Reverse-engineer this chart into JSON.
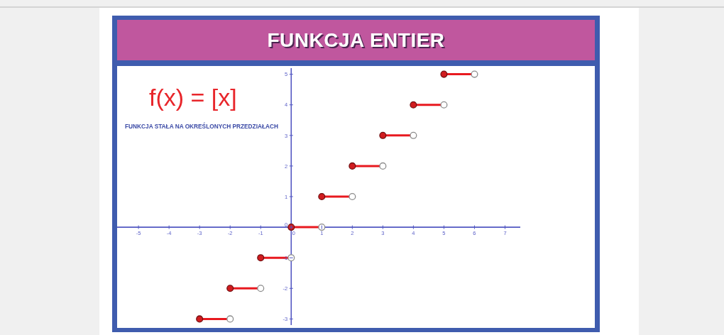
{
  "chart_data": {
    "type": "line",
    "title": "FUNKCJA ENTIER",
    "subtitle": "f(x) = [x]",
    "annotations": [
      "FUNKCJA STAŁA NA OKREŚLONYCH PRZEDZIAŁACH"
    ],
    "series": [
      {
        "x": [
          -3,
          -2
        ],
        "values": [
          -3,
          -3
        ],
        "color": "#e8191f"
      },
      {
        "x": [
          -2,
          -1
        ],
        "values": [
          -2,
          -2
        ],
        "color": "#e8191f"
      },
      {
        "x": [
          -1,
          0
        ],
        "values": [
          -1,
          -1
        ],
        "color": "#e8191f"
      },
      {
        "x": [
          0,
          1
        ],
        "values": [
          0,
          0
        ],
        "color": "#e8191f"
      },
      {
        "x": [
          1,
          2
        ],
        "values": [
          1,
          1
        ],
        "color": "#e8191f"
      },
      {
        "x": [
          2,
          3
        ],
        "values": [
          2,
          2
        ],
        "color": "#e8191f"
      },
      {
        "x": [
          3,
          4
        ],
        "values": [
          3,
          3
        ],
        "color": "#e8191f"
      },
      {
        "x": [
          4,
          5
        ],
        "values": [
          4,
          4
        ],
        "color": "#e8191f"
      },
      {
        "x": [
          5,
          6
        ],
        "values": [
          5,
          5
        ],
        "color": "#e8191f"
      },
      {
        "type": "scatter",
        "marker": "circle",
        "x": [
          -3,
          -2,
          -1,
          0,
          1,
          2,
          3,
          4,
          5
        ],
        "values": [
          -3,
          -2,
          -1,
          0,
          1,
          2,
          3,
          4,
          5
        ],
        "color": "#d01c1f"
      },
      {
        "type": "scatter",
        "marker": "circle",
        "x": [
          -2,
          -1,
          0,
          1,
          2,
          3,
          4,
          5,
          6
        ],
        "values": [
          -3,
          -2,
          -1,
          0,
          1,
          2,
          3,
          4,
          5
        ],
        "color": "#ffffff"
      }
    ],
    "xlim": [
      -5.7,
      7.5
    ],
    "ylim": [
      -3.2,
      5.2
    ],
    "xticks": [
      -5,
      -4,
      -3,
      -2,
      -1,
      0,
      1,
      2,
      3,
      4,
      5,
      6,
      7
    ],
    "yticks": [
      -3,
      -2,
      -1,
      0,
      1,
      2,
      3,
      4,
      5
    ]
  }
}
